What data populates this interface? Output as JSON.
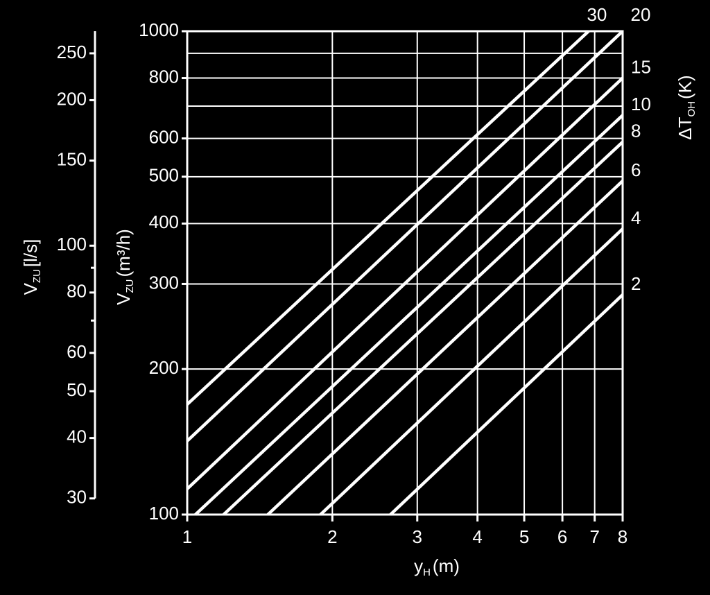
{
  "chart_data": {
    "type": "line",
    "log_x": true,
    "log_y": true,
    "grid": true,
    "color": "#ffffff",
    "x_label": {
      "main": "y",
      "sub": "H",
      "unit": "(m)"
    },
    "y_label": {
      "main": "V",
      "sub": "ZU",
      "unit": "(m³/h)"
    },
    "y2_label": {
      "main": "V",
      "sub": "ZU",
      "unit": "[l/s]"
    },
    "legend_title": {
      "main": "ΔT",
      "sub": "OH",
      "unit": "(K)"
    },
    "xlim": [
      1,
      8
    ],
    "xticks": [
      1,
      2,
      3,
      4,
      5,
      6,
      7,
      8
    ],
    "ylim": [
      100,
      1000
    ],
    "yticks": [
      100,
      200,
      300,
      400,
      500,
      600,
      800,
      1000
    ],
    "y_minor_grid": [
      700,
      900
    ],
    "y2lim": [
      27.78,
      277.8
    ],
    "y2ticks": [
      30,
      40,
      50,
      60,
      80,
      100,
      150,
      200,
      250
    ],
    "y2_minor_ticks": [
      70,
      90
    ],
    "series": [
      {
        "name": "30",
        "x": [
          1,
          6.8
        ],
        "values": [
          169,
          1000
        ]
      },
      {
        "name": "20",
        "x": [
          1,
          8
        ],
        "values": [
          142,
          1000
        ]
      },
      {
        "name": "15",
        "x": [
          1,
          8
        ],
        "values": [
          113,
          800
        ]
      },
      {
        "name": "10",
        "x": [
          1.04,
          8
        ],
        "values": [
          100,
          670
        ]
      },
      {
        "name": "8",
        "x": [
          1.19,
          8
        ],
        "values": [
          100,
          590
        ]
      },
      {
        "name": "6",
        "x": [
          1.47,
          8
        ],
        "values": [
          100,
          490
        ]
      },
      {
        "name": "4",
        "x": [
          1.89,
          8
        ],
        "values": [
          100,
          390
        ]
      },
      {
        "name": "2",
        "x": [
          2.64,
          8
        ],
        "values": [
          100,
          285
        ]
      }
    ]
  }
}
